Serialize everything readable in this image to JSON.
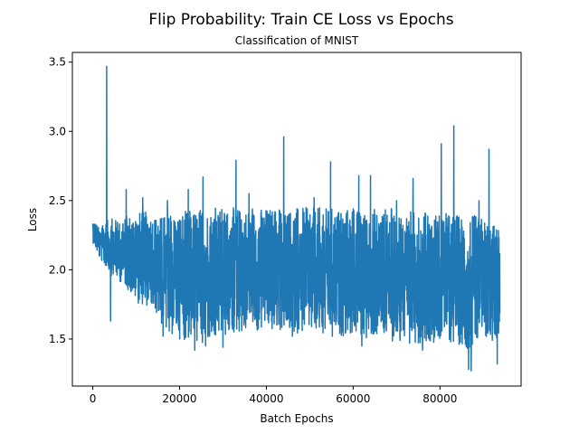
{
  "chart_data": {
    "type": "line",
    "title": "Flip Probability: Train CE Loss vs Epochs",
    "subtitle": "Classification of MNIST",
    "xlabel": "Batch Epochs",
    "ylabel": "Loss",
    "xlim": [
      -4700,
      98700
    ],
    "ylim": [
      1.16,
      3.57
    ],
    "xticks": [
      0,
      20000,
      40000,
      60000,
      80000
    ],
    "xtick_labels": [
      "0",
      "20000",
      "40000",
      "60000",
      "80000"
    ],
    "yticks": [
      1.5,
      2.0,
      2.5,
      3.0,
      3.5
    ],
    "ytick_labels": [
      "1.5",
      "2.0",
      "2.5",
      "3.0",
      "3.5"
    ],
    "grid": false,
    "series": [
      {
        "color": "#1f77b4",
        "x_start": 0,
        "x_end": 93800,
        "n_points": 2600,
        "envelope": {
          "x": [
            0,
            1500,
            3000,
            4500,
            6000,
            8000,
            10000,
            12000,
            14000,
            15000,
            16500,
            20000,
            25000,
            30000,
            35000,
            40000,
            45000,
            50000,
            55000,
            60000,
            62000,
            65000,
            70000,
            75000,
            80000,
            85000,
            87000,
            90000,
            93800
          ],
          "low": [
            2.2,
            2.08,
            2.02,
            1.95,
            1.92,
            1.86,
            1.76,
            1.74,
            1.72,
            1.65,
            1.55,
            1.5,
            1.46,
            1.5,
            1.55,
            1.55,
            1.55,
            1.53,
            1.52,
            1.52,
            1.5,
            1.5,
            1.48,
            1.47,
            1.48,
            1.45,
            1.42,
            1.45,
            1.5
          ],
          "high": [
            2.38,
            2.3,
            2.35,
            2.38,
            2.35,
            2.4,
            2.42,
            2.42,
            2.42,
            2.38,
            2.4,
            2.42,
            2.45,
            2.45,
            2.45,
            2.45,
            2.45,
            2.45,
            2.45,
            2.45,
            2.42,
            2.45,
            2.45,
            2.42,
            2.42,
            2.4,
            2.4,
            2.38,
            2.3
          ]
        },
        "spikes": [
          {
            "x": 3200,
            "y": 3.47
          },
          {
            "x": 4100,
            "y": 1.63
          },
          {
            "x": 7700,
            "y": 2.58
          },
          {
            "x": 11500,
            "y": 2.52
          },
          {
            "x": 16200,
            "y": 1.52
          },
          {
            "x": 17200,
            "y": 2.5
          },
          {
            "x": 22000,
            "y": 2.58
          },
          {
            "x": 23500,
            "y": 1.42
          },
          {
            "x": 25400,
            "y": 2.67
          },
          {
            "x": 26000,
            "y": 1.45
          },
          {
            "x": 30000,
            "y": 1.44
          },
          {
            "x": 33000,
            "y": 2.79
          },
          {
            "x": 36000,
            "y": 2.55
          },
          {
            "x": 44000,
            "y": 2.96
          },
          {
            "x": 46000,
            "y": 1.52
          },
          {
            "x": 51000,
            "y": 2.52
          },
          {
            "x": 54800,
            "y": 2.78
          },
          {
            "x": 55200,
            "y": 1.52
          },
          {
            "x": 61300,
            "y": 2.68
          },
          {
            "x": 62000,
            "y": 1.45
          },
          {
            "x": 64000,
            "y": 2.68
          },
          {
            "x": 70000,
            "y": 2.5
          },
          {
            "x": 73000,
            "y": 1.47
          },
          {
            "x": 73800,
            "y": 2.66
          },
          {
            "x": 76000,
            "y": 1.42
          },
          {
            "x": 80300,
            "y": 2.91
          },
          {
            "x": 83200,
            "y": 3.04
          },
          {
            "x": 86600,
            "y": 1.28
          },
          {
            "x": 87200,
            "y": 1.27
          },
          {
            "x": 89000,
            "y": 2.5
          },
          {
            "x": 91300,
            "y": 2.87
          },
          {
            "x": 93200,
            "y": 1.32
          },
          {
            "x": 93600,
            "y": 2.23
          }
        ]
      }
    ]
  }
}
